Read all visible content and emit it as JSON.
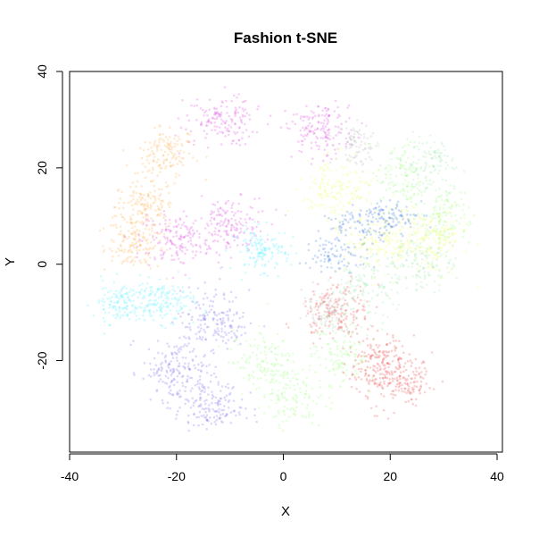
{
  "chart_data": {
    "type": "scatter",
    "title": "Fashion t-SNE",
    "xlabel": "X",
    "ylabel": "Y",
    "xlim": [
      -40,
      41
    ],
    "ylim": [
      -39,
      40
    ],
    "x_ticks": [
      -40,
      -20,
      0,
      20,
      40
    ],
    "y_ticks": [
      -20,
      0,
      20,
      40
    ],
    "x_tick_labels": [
      "-40",
      "-20",
      "0",
      "20",
      "40"
    ],
    "y_tick_labels": [
      "-20",
      "0",
      "20",
      "40"
    ],
    "grid": false,
    "legend": "none",
    "point_alpha": 0.25,
    "clusters": [
      {
        "color": "#FFB04C",
        "centers": [
          [
            -26,
            12
          ],
          [
            -22,
            23
          ],
          [
            -28,
            4
          ]
        ],
        "spread": [
          5,
          5
        ],
        "points": 420
      },
      {
        "color": "#E04BE0",
        "centers": [
          [
            -12,
            30
          ],
          [
            7,
            28
          ],
          [
            -10,
            8
          ],
          [
            -20,
            5
          ]
        ],
        "spread": [
          6,
          5
        ],
        "points": 620
      },
      {
        "color": "#55EEFF",
        "centers": [
          [
            -30,
            -8
          ],
          [
            -22,
            -8
          ],
          [
            -4,
            3
          ]
        ],
        "spread": [
          5,
          4
        ],
        "points": 420
      },
      {
        "color": "#7A6BEA",
        "centers": [
          [
            -20,
            -22
          ],
          [
            -13,
            -12
          ],
          [
            -14,
            -30
          ]
        ],
        "spread": [
          6,
          6
        ],
        "points": 500
      },
      {
        "color": "#9CFF7A",
        "centers": [
          [
            -4,
            -20
          ],
          [
            2,
            -28
          ],
          [
            10,
            -18
          ],
          [
            22,
            18
          ],
          [
            30,
            10
          ]
        ],
        "spread": [
          5,
          6
        ],
        "points": 620
      },
      {
        "color": "#EE4A4A",
        "centers": [
          [
            10,
            -10
          ],
          [
            18,
            -20
          ],
          [
            22,
            -25
          ]
        ],
        "spread": [
          6,
          5
        ],
        "points": 500
      },
      {
        "color": "#EEFF5A",
        "centers": [
          [
            10,
            15
          ],
          [
            18,
            5
          ],
          [
            28,
            5
          ]
        ],
        "spread": [
          6,
          6
        ],
        "points": 480
      },
      {
        "color": "#3B7BE0",
        "centers": [
          [
            15,
            8
          ],
          [
            20,
            10
          ],
          [
            10,
            2
          ]
        ],
        "spread": [
          6,
          3
        ],
        "points": 260
      },
      {
        "color": "#9FE8B0",
        "centers": [
          [
            25,
            0
          ],
          [
            15,
            -5
          ],
          [
            28,
            22
          ]
        ],
        "spread": [
          6,
          6
        ],
        "points": 420
      },
      {
        "color": "#BBBBBB",
        "centers": [
          [
            8,
            -10
          ],
          [
            14,
            25
          ]
        ],
        "spread": [
          4,
          4
        ],
        "points": 180
      }
    ]
  }
}
